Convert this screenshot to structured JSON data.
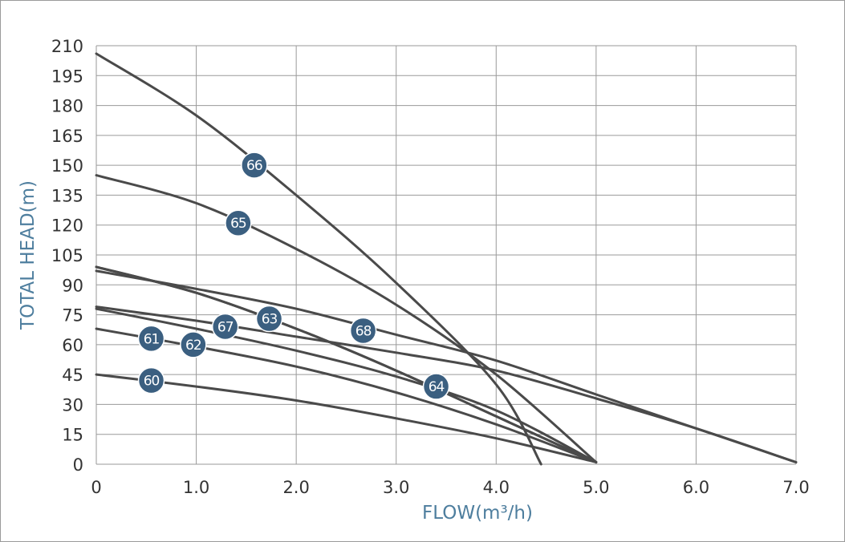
{
  "chart_data": {
    "type": "line",
    "xlabel": "FLOW(m³/h)",
    "ylabel": "TOTAL HEAD(m)",
    "xlim": [
      0,
      7
    ],
    "ylim": [
      0,
      210
    ],
    "x_ticks": [
      "0",
      "1.0",
      "2.0",
      "3.0",
      "4.0",
      "5.0",
      "6.0",
      "7.0"
    ],
    "y_ticks": [
      "0",
      "15",
      "30",
      "45",
      "60",
      "75",
      "90",
      "105",
      "120",
      "135",
      "150",
      "165",
      "180",
      "195",
      "210"
    ],
    "grid": true,
    "colors": {
      "line": "#4a4a4a",
      "badge": "#3b5f80",
      "axis_label": "#4e7e9e",
      "grid": "#9a9a9a"
    },
    "series": [
      {
        "name": "60",
        "label_at": [
          0.55,
          42
        ],
        "points": [
          [
            0,
            45
          ],
          [
            1,
            39
          ],
          [
            2,
            32
          ],
          [
            3,
            23
          ],
          [
            4,
            13
          ],
          [
            5,
            1
          ]
        ]
      },
      {
        "name": "61",
        "label_at": [
          0.55,
          63
        ],
        "points": [
          [
            0,
            68
          ],
          [
            1,
            59
          ],
          [
            2,
            49
          ],
          [
            3,
            36
          ],
          [
            4,
            20
          ],
          [
            5,
            1
          ]
        ]
      },
      {
        "name": "62",
        "label_at": [
          0.97,
          60
        ],
        "points": [
          [
            0,
            78
          ],
          [
            1,
            68
          ],
          [
            2,
            57
          ],
          [
            3,
            44
          ],
          [
            4,
            27
          ],
          [
            5,
            1
          ]
        ]
      },
      {
        "name": "63",
        "label_at": [
          1.73,
          73
        ],
        "points": [
          [
            0,
            99
          ],
          [
            1,
            86
          ],
          [
            2,
            68
          ],
          [
            3,
            47
          ],
          [
            4,
            24
          ],
          [
            5,
            1
          ]
        ]
      },
      {
        "name": "64",
        "label_at": [
          3.4,
          39
        ],
        "points": [
          [
            0,
            99
          ],
          [
            1,
            86
          ],
          [
            2,
            68
          ],
          [
            3,
            47
          ],
          [
            4,
            24
          ],
          [
            5,
            1
          ]
        ]
      },
      {
        "name": "65",
        "label_at": [
          1.42,
          121
        ],
        "points": [
          [
            0,
            145
          ],
          [
            1,
            131
          ],
          [
            2,
            108
          ],
          [
            3,
            80
          ],
          [
            4,
            45
          ],
          [
            5,
            1
          ]
        ]
      },
      {
        "name": "66",
        "label_at": [
          1.58,
          150
        ],
        "points": [
          [
            0,
            206
          ],
          [
            1,
            175
          ],
          [
            2,
            135
          ],
          [
            3,
            91
          ],
          [
            4,
            40
          ],
          [
            4.45,
            0
          ]
        ]
      },
      {
        "name": "67",
        "label_at": [
          1.29,
          69
        ],
        "points": [
          [
            0,
            79
          ],
          [
            1,
            72
          ],
          [
            2,
            64
          ],
          [
            3,
            56
          ],
          [
            4,
            47
          ],
          [
            5,
            33
          ],
          [
            6,
            18
          ],
          [
            7,
            1
          ]
        ]
      },
      {
        "name": "68",
        "label_at": [
          2.67,
          67
        ],
        "points": [
          [
            0,
            97
          ],
          [
            1,
            88
          ],
          [
            2,
            78
          ],
          [
            3,
            65
          ],
          [
            4,
            52
          ],
          [
            5,
            35
          ],
          [
            6,
            18
          ],
          [
            7,
            1
          ]
        ]
      }
    ]
  }
}
